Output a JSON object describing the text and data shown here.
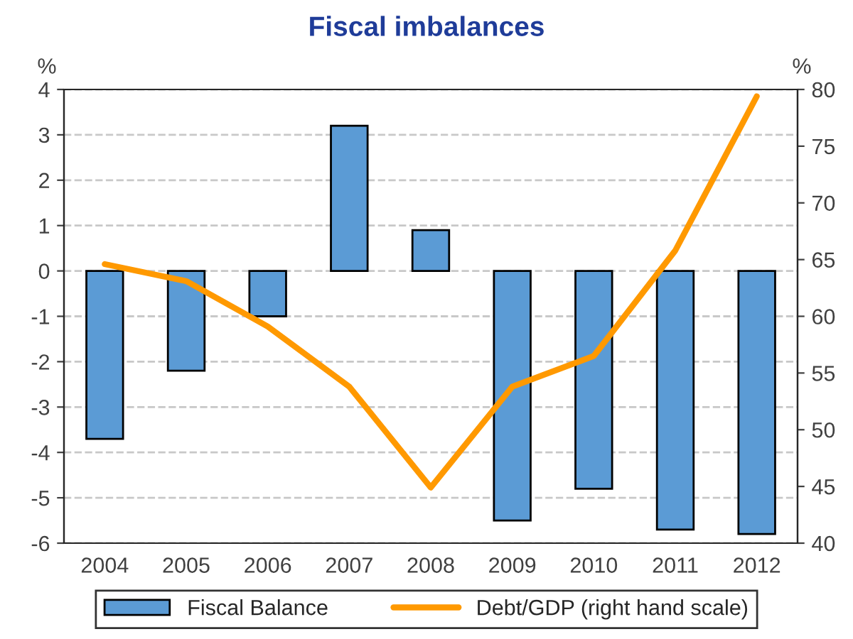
{
  "chart_data": {
    "type": "bar",
    "title": "Fiscal imbalances",
    "ylabel": "%",
    "y2label": "%",
    "categories": [
      "2004",
      "2005",
      "2006",
      "2007",
      "2008",
      "2009",
      "2010",
      "2011",
      "2012"
    ],
    "series": [
      {
        "name": "Fiscal Balance",
        "color": "#5b9bd5",
        "values": [
          -3.7,
          -2.2,
          -1.0,
          3.2,
          0.9,
          -5.5,
          -4.8,
          -5.7,
          -5.8
        ]
      },
      {
        "name": "Debt/GDP (right hand scale)",
        "type": "line",
        "axis": "y2",
        "color": "#ff9900",
        "values": [
          64.6,
          63.1,
          59.1,
          53.8,
          44.9,
          53.8,
          56.5,
          65.8,
          79.4
        ]
      }
    ],
    "ylim": [
      -6,
      4
    ],
    "yticks": [
      -6,
      -5,
      -4,
      -3,
      -2,
      -1,
      0,
      1,
      2,
      3,
      4
    ],
    "y2lim": [
      40,
      80
    ],
    "y2ticks": [
      40,
      45,
      50,
      55,
      60,
      65,
      70,
      75,
      80
    ],
    "grid": "y",
    "legend": "bottom"
  }
}
